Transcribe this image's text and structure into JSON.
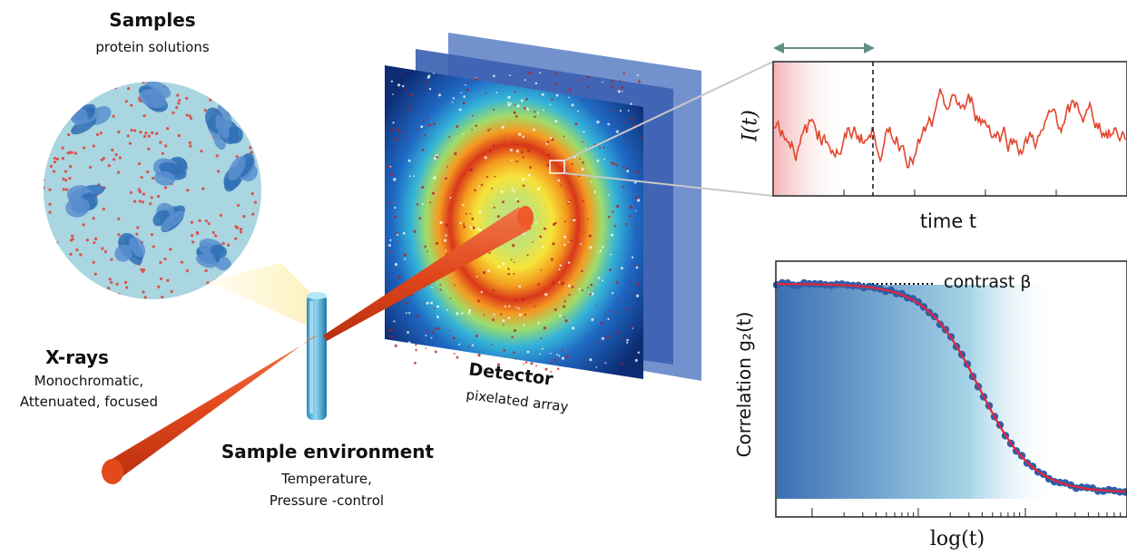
{
  "samples": {
    "title": "Samples",
    "subtitle": "protein solutions"
  },
  "xrays": {
    "title": "X-rays",
    "line1": "Monochromatic,",
    "line2": "Attenuated, focused"
  },
  "sample_env": {
    "title": "Sample environment",
    "line1": "Temperature,",
    "line2": "Pressure -control"
  },
  "detector": {
    "title": "Detector",
    "subtitle": "pixelated array"
  },
  "intensity_plot": {
    "ylabel": "I(t)",
    "xlabel": "time t"
  },
  "correlation_plot": {
    "ylabel": "Correlation  g₂(t)",
    "xlabel": "log(t)",
    "annotation": "contrast β"
  },
  "colors": {
    "beam": "#e0461c",
    "trace": "#e2452c",
    "fit": "#e5253a",
    "points": "#2f5fa8",
    "droplet_bg": "#a9d6e0",
    "protein": "#2f6fb5",
    "arrow": "#5f8f8a"
  }
}
